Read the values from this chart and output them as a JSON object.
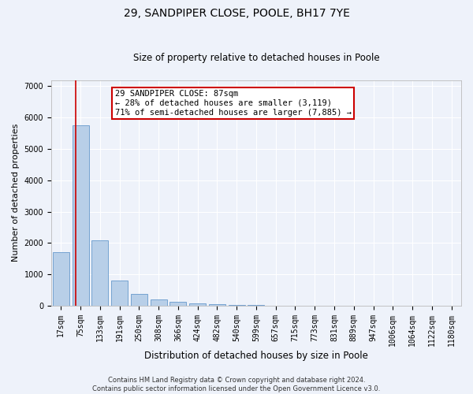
{
  "title": "29, SANDPIPER CLOSE, POOLE, BH17 7YE",
  "subtitle": "Size of property relative to detached houses in Poole",
  "xlabel": "Distribution of detached houses by size in Poole",
  "ylabel": "Number of detached properties",
  "categories": [
    "17sqm",
    "75sqm",
    "133sqm",
    "191sqm",
    "250sqm",
    "308sqm",
    "366sqm",
    "424sqm",
    "482sqm",
    "540sqm",
    "599sqm",
    "657sqm",
    "715sqm",
    "773sqm",
    "831sqm",
    "889sqm",
    "947sqm",
    "1006sqm",
    "1064sqm",
    "1122sqm",
    "1180sqm"
  ],
  "values": [
    1700,
    5750,
    2100,
    800,
    380,
    200,
    120,
    80,
    50,
    40,
    35,
    0,
    0,
    0,
    0,
    0,
    0,
    0,
    0,
    0,
    0
  ],
  "bar_color": "#b8cfe8",
  "bar_edgecolor": "#6699cc",
  "annotation_text": "29 SANDPIPER CLOSE: 87sqm\n← 28% of detached houses are smaller (3,119)\n71% of semi-detached houses are larger (7,885) →",
  "annotation_box_color": "#ffffff",
  "annotation_border_color": "#cc0000",
  "vertical_line_color": "#cc0000",
  "footer_text": "Contains HM Land Registry data © Crown copyright and database right 2024.\nContains public sector information licensed under the Open Government Licence v3.0.",
  "ylim": [
    0,
    7200
  ],
  "yticks": [
    0,
    1000,
    2000,
    3000,
    4000,
    5000,
    6000,
    7000
  ],
  "background_color": "#eef2fa",
  "grid_color": "#ffffff",
  "title_fontsize": 10,
  "subtitle_fontsize": 8.5,
  "ylabel_fontsize": 8,
  "xlabel_fontsize": 8.5,
  "tick_fontsize": 7,
  "footer_fontsize": 6,
  "annot_fontsize": 7.5
}
